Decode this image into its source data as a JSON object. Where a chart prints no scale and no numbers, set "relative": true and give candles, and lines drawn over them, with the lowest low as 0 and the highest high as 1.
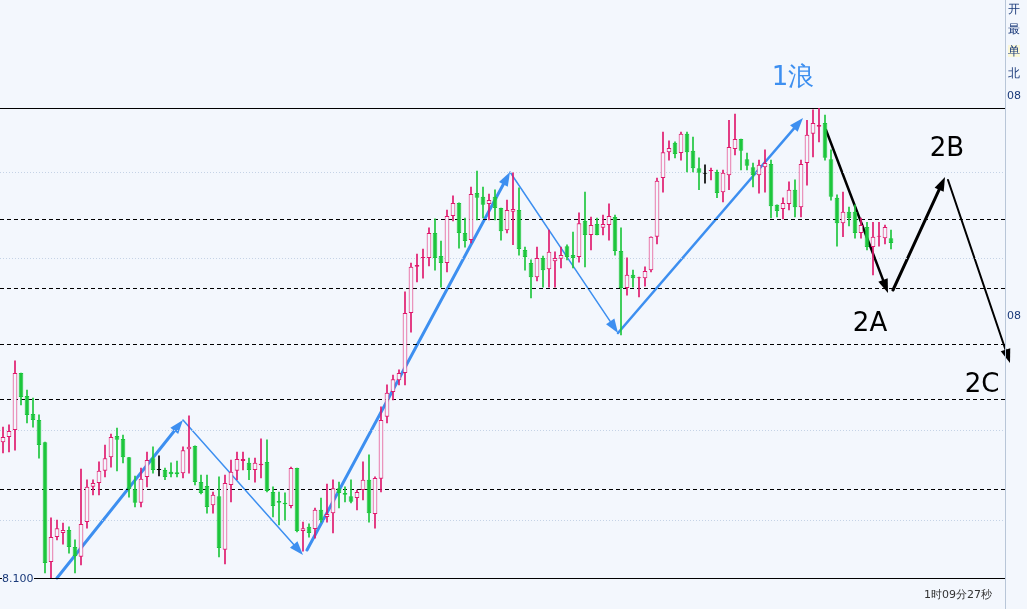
{
  "chart_data": {
    "type": "candlestick",
    "relative": true,
    "categories": [
      null,
      null,
      null,
      null,
      null,
      null,
      null,
      null,
      null,
      null,
      null,
      null,
      null,
      null,
      null,
      null,
      null,
      null,
      null,
      null,
      null,
      null,
      null,
      null,
      null,
      null,
      null,
      null,
      null,
      null,
      null,
      null,
      null,
      null,
      null,
      null,
      null,
      null,
      null,
      null,
      null,
      null,
      null,
      null,
      null,
      null,
      null,
      null,
      null,
      null,
      null,
      null,
      null,
      null,
      null,
      null,
      null,
      null,
      null,
      null,
      null,
      null,
      null,
      null,
      null,
      null,
      null,
      null,
      null,
      null,
      null,
      null,
      null,
      null,
      null,
      null,
      null,
      null,
      null,
      null,
      null,
      null,
      null,
      null,
      null,
      null,
      null,
      null,
      null,
      null,
      null,
      null,
      null,
      null,
      null,
      null,
      null,
      null,
      null,
      null,
      null,
      null,
      null,
      null,
      null,
      null,
      null,
      null,
      null,
      null,
      null,
      null,
      null,
      null,
      null,
      null,
      null,
      null,
      null,
      null,
      null,
      null,
      null,
      null,
      null,
      null,
      null,
      null,
      null,
      null,
      null,
      null,
      null,
      null,
      null,
      null,
      null,
      null,
      null,
      null,
      null,
      null,
      null,
      null,
      null,
      null,
      null,
      null,
      null
    ],
    "ohlc": [
      [
        0.289,
        0.321,
        0.266,
        0.3
      ],
      [
        0.3,
        0.326,
        0.268,
        0.313
      ],
      [
        0.315,
        0.462,
        0.272,
        0.436
      ],
      [
        0.436,
        0.436,
        0.368,
        0.385
      ],
      [
        0.387,
        0.4,
        0.33,
        0.347
      ],
      [
        0.349,
        0.383,
        0.321,
        0.336
      ],
      [
        0.336,
        0.347,
        0.255,
        0.283
      ],
      [
        0.289,
        0.289,
        0.011,
        0.032
      ],
      [
        0.034,
        0.128,
        0,
        0.087
      ],
      [
        0.087,
        0.123,
        0.081,
        0.106
      ],
      [
        0.096,
        0.117,
        0.072,
        0.102
      ],
      [
        0.102,
        0.109,
        0.053,
        0.066
      ],
      [
        0.066,
        0.081,
        0.011,
        0.047
      ],
      [
        0.045,
        0.232,
        0.028,
        0.115
      ],
      [
        0.119,
        0.209,
        0.106,
        0.194
      ],
      [
        0.194,
        0.209,
        0.177,
        0.202
      ],
      [
        0.202,
        0.247,
        0.177,
        0.228
      ],
      [
        0.228,
        0.283,
        0.215,
        0.255
      ],
      [
        0.257,
        0.306,
        0.236,
        0.3
      ],
      [
        0.302,
        0.319,
        0.228,
        0.294
      ],
      [
        0.296,
        0.304,
        0.245,
        0.257
      ],
      [
        0.257,
        0.257,
        0.172,
        0.189
      ],
      [
        0.189,
        0.217,
        0.151,
        0.16
      ],
      [
        0.16,
        0.234,
        0.151,
        0.211
      ],
      [
        0.215,
        0.268,
        0.194,
        0.251
      ],
      [
        0.255,
        0.279,
        0.223,
        0.23
      ],
      [
        0.23,
        0.26,
        0.217,
        0.23
      ],
      [
        0.23,
        0.234,
        0.209,
        0.215
      ],
      [
        0.226,
        0.245,
        0.215,
        0.221
      ],
      [
        0.225,
        0.249,
        0.215,
        0.221
      ],
      [
        0.223,
        0.279,
        0.213,
        0.272
      ],
      [
        0.274,
        0.345,
        0.223,
        0.279
      ],
      [
        0.281,
        0.281,
        0.198,
        0.204
      ],
      [
        0.204,
        0.219,
        0.179,
        0.181
      ],
      [
        0.196,
        0.219,
        0.138,
        0.151
      ],
      [
        0.155,
        0.183,
        0.138,
        0.177
      ],
      [
        0.174,
        0.215,
        0.045,
        0.064
      ],
      [
        0.06,
        0.219,
        0.03,
        0.202
      ],
      [
        0.198,
        0.251,
        0.162,
        0.226
      ],
      [
        0.228,
        0.268,
        0.209,
        0.253
      ],
      [
        0.249,
        0.268,
        0.23,
        0.253
      ],
      [
        0.245,
        0.255,
        0.209,
        0.23
      ],
      [
        0.23,
        0.255,
        0.204,
        0.245
      ],
      [
        0.24,
        0.296,
        0.213,
        0.243
      ],
      [
        0.247,
        0.294,
        0.183,
        0.185
      ],
      [
        0.183,
        0.194,
        0.13,
        0.153
      ],
      [
        0.164,
        0.183,
        0.113,
        0.16
      ],
      [
        0.16,
        0.181,
        0.123,
        0.157
      ],
      [
        0.153,
        0.236,
        0.149,
        0.234
      ],
      [
        0.234,
        0.234,
        0.098,
        0.1
      ],
      [
        0.1,
        0.119,
        0.057,
        0.106
      ],
      [
        0.109,
        0.115,
        0.087,
        0.096
      ],
      [
        0.104,
        0.149,
        0.085,
        0.145
      ],
      [
        0.145,
        0.17,
        0.119,
        0.123
      ],
      [
        0.13,
        0.2,
        0.119,
        0.136
      ],
      [
        0.138,
        0.209,
        0.096,
        0.191
      ],
      [
        0.191,
        0.204,
        0.149,
        0.181
      ],
      [
        0.181,
        0.194,
        0.162,
        0.177
      ],
      [
        0.174,
        0.209,
        0.16,
        0.162
      ],
      [
        0.17,
        0.187,
        0.145,
        0.183
      ],
      [
        0.187,
        0.247,
        0.166,
        0.209
      ],
      [
        0.209,
        0.262,
        0.119,
        0.138
      ],
      [
        0.136,
        0.215,
        0.106,
        0.213
      ],
      [
        0.211,
        0.364,
        0.183,
        0.336
      ],
      [
        0.343,
        0.411,
        0.33,
        0.394
      ],
      [
        0.396,
        0.432,
        0.379,
        0.423
      ],
      [
        0.421,
        0.443,
        0.411,
        0.436
      ],
      [
        0.436,
        0.609,
        0.411,
        0.564
      ],
      [
        0.564,
        0.67,
        0.523,
        0.662
      ],
      [
        0.662,
        0.689,
        0.63,
        0.666
      ],
      [
        0.681,
        0.7,
        0.638,
        0.683
      ],
      [
        0.681,
        0.745,
        0.664,
        0.734
      ],
      [
        0.734,
        0.764,
        0.655,
        0.681
      ],
      [
        0.685,
        0.717,
        0.619,
        0.67
      ],
      [
        0.67,
        0.783,
        0.651,
        0.77
      ],
      [
        0.77,
        0.813,
        0.76,
        0.798
      ],
      [
        0.798,
        0.798,
        0.702,
        0.734
      ],
      [
        0.734,
        0.766,
        0.704,
        0.717
      ],
      [
        0.719,
        0.832,
        0.713,
        0.817
      ],
      [
        0.819,
        0.866,
        0.762,
        0.809
      ],
      [
        0.811,
        0.832,
        0.766,
        0.794
      ],
      [
        0.796,
        0.817,
        0.762,
        0.804
      ],
      [
        0.811,
        0.826,
        0.762,
        0.787
      ],
      [
        0.787,
        0.787,
        0.719,
        0.738
      ],
      [
        0.74,
        0.804,
        0.734,
        0.783
      ],
      [
        0.779,
        0.862,
        0.709,
        0.785
      ],
      [
        0.783,
        0.83,
        0.687,
        0.7
      ],
      [
        0.698,
        0.704,
        0.655,
        0.683
      ],
      [
        0.67,
        0.677,
        0.596,
        0.64
      ],
      [
        0.64,
        0.704,
        0.632,
        0.681
      ],
      [
        0.681,
        0.685,
        0.619,
        0.655
      ],
      [
        0.657,
        0.74,
        0.619,
        0.694
      ],
      [
        0.674,
        0.694,
        0.619,
        0.681
      ],
      [
        0.679,
        0.704,
        0.66,
        0.687
      ],
      [
        0.706,
        0.709,
        0.677,
        0.683
      ],
      [
        0.687,
        0.736,
        0.66,
        0.681
      ],
      [
        0.683,
        0.777,
        0.672,
        0.755
      ],
      [
        0.76,
        0.821,
        0.662,
        0.73
      ],
      [
        0.73,
        0.768,
        0.698,
        0.751
      ],
      [
        0.753,
        0.766,
        0.73,
        0.73
      ],
      [
        0.745,
        0.772,
        0.73,
        0.753
      ],
      [
        0.751,
        0.796,
        0.719,
        0.77
      ],
      [
        0.768,
        0.772,
        0.687,
        0.696
      ],
      [
        0.696,
        0.745,
        0.517,
        0.617
      ],
      [
        0.617,
        0.681,
        0.602,
        0.645
      ],
      [
        0.645,
        0.655,
        0.619,
        0.638
      ],
      [
        0.638,
        0.64,
        0.598,
        0.64
      ],
      [
        0.638,
        0.662,
        0.621,
        0.653
      ],
      [
        0.655,
        0.726,
        0.651,
        0.726
      ],
      [
        0.726,
        0.851,
        0.711,
        0.845
      ],
      [
        0.851,
        0.949,
        0.821,
        0.906
      ],
      [
        0.906,
        0.93,
        0.889,
        0.915
      ],
      [
        0.926,
        0.928,
        0.894,
        0.902
      ],
      [
        0.904,
        0.949,
        0.889,
        0.945
      ],
      [
        0.945,
        0.949,
        0.864,
        0.906
      ],
      [
        0.909,
        0.938,
        0.864,
        0.872
      ],
      [
        0.872,
        0.894,
        0.826,
        0.862
      ],
      [
        0.86,
        0.879,
        0.84,
        0.86
      ],
      [
        0.866,
        0.872,
        0.847,
        0.868
      ],
      [
        0.864,
        0.868,
        0.809,
        0.819
      ],
      [
        0.821,
        0.868,
        0.8,
        0.862
      ],
      [
        0.857,
        0.974,
        0.826,
        0.917
      ],
      [
        0.913,
        0.987,
        0.9,
        0.934
      ],
      [
        0.934,
        0.934,
        0.868,
        0.909
      ],
      [
        0.891,
        0.904,
        0.868,
        0.877
      ],
      [
        0.874,
        0.883,
        0.832,
        0.857
      ],
      [
        0.857,
        0.889,
        0.819,
        0.879
      ],
      [
        0.874,
        0.911,
        0.821,
        0.883
      ],
      [
        0.881,
        0.889,
        0.766,
        0.791
      ],
      [
        0.794,
        0.794,
        0.768,
        0.781
      ],
      [
        0.785,
        0.809,
        0.764,
        0.798
      ],
      [
        0.796,
        0.843,
        0.783,
        0.826
      ],
      [
        0.826,
        0.847,
        0.768,
        0.789
      ],
      [
        0.789,
        0.889,
        0.768,
        0.881
      ],
      [
        0.883,
        0.974,
        0.836,
        0.943
      ],
      [
        0.945,
        0.996,
        0.896,
        0.968
      ],
      [
        0.96,
        1,
        0.928,
        0.964
      ],
      [
        0.968,
        0.985,
        0.889,
        0.894
      ],
      [
        0.891,
        0.911,
        0.804,
        0.811
      ],
      [
        0.809,
        0.815,
        0.706,
        0.755
      ],
      [
        0.755,
        0.821,
        0.726,
        0.779
      ],
      [
        0.779,
        0.789,
        0.749,
        0.766
      ],
      [
        0.779,
        0.794,
        0.723,
        0.734
      ],
      [
        0.734,
        0.766,
        0.723,
        0.751
      ],
      [
        0.747,
        0.757,
        0.698,
        0.704
      ],
      [
        0.704,
        0.757,
        0.645,
        0.726
      ],
      [
        0.726,
        0.757,
        0.706,
        0.728
      ],
      [
        0.723,
        0.751,
        0.711,
        0.747
      ],
      [
        0.723,
        0.74,
        0.7,
        0.713
      ]
    ],
    "colors": [
      "#e0186c",
      "#e0186c",
      "#e0186c",
      "#1cc63c",
      "#1cc63c",
      "#1cc63c",
      "#1cc63c",
      "#1cc63c",
      "#e0186c",
      "#e0186c",
      "#e0186c",
      "#1cc63c",
      "#1cc63c",
      "#e0186c",
      "#e0186c",
      "#e0186c",
      "#e0186c",
      "#e0186c",
      "#e0186c",
      "#1cc63c",
      "#1cc63c",
      "#1cc63c",
      "#1cc63c",
      "#e0186c",
      "#e0186c",
      "#1cc63c",
      "#000000",
      "#1cc63c",
      "#1cc63c",
      "#1cc63c",
      "#e0186c",
      "#e0186c",
      "#1cc63c",
      "#1cc63c",
      "#1cc63c",
      "#e0186c",
      "#1cc63c",
      "#e0186c",
      "#e0186c",
      "#e0186c",
      "#e0186c",
      "#1cc63c",
      "#e0186c",
      "#e0186c",
      "#1cc63c",
      "#1cc63c",
      "#1cc63c",
      "#1cc63c",
      "#e0186c",
      "#1cc63c",
      "#e0186c",
      "#1cc63c",
      "#e0186c",
      "#1cc63c",
      "#e0186c",
      "#e0186c",
      "#1cc63c",
      "#1cc63c",
      "#1cc63c",
      "#e0186c",
      "#e0186c",
      "#1cc63c",
      "#e0186c",
      "#e0186c",
      "#e0186c",
      "#e0186c",
      "#e0186c",
      "#e0186c",
      "#e0186c",
      "#e0186c",
      "#e0186c",
      "#e0186c",
      "#1cc63c",
      "#1cc63c",
      "#e0186c",
      "#e0186c",
      "#1cc63c",
      "#1cc63c",
      "#e0186c",
      "#1cc63c",
      "#1cc63c",
      "#e0186c",
      "#1cc63c",
      "#1cc63c",
      "#e0186c",
      "#e0186c",
      "#1cc63c",
      "#1cc63c",
      "#1cc63c",
      "#e0186c",
      "#1cc63c",
      "#e0186c",
      "#e0186c",
      "#e0186c",
      "#1cc63c",
      "#1cc63c",
      "#e0186c",
      "#1cc63c",
      "#e0186c",
      "#1cc63c",
      "#e0186c",
      "#e0186c",
      "#1cc63c",
      "#1cc63c",
      "#e0186c",
      "#1cc63c",
      "#e0186c",
      "#e0186c",
      "#e0186c",
      "#e0186c",
      "#e0186c",
      "#e0186c",
      "#1cc63c",
      "#e0186c",
      "#1cc63c",
      "#1cc63c",
      "#1cc63c",
      "#000000",
      "#e0186c",
      "#1cc63c",
      "#e0186c",
      "#e0186c",
      "#e0186c",
      "#1cc63c",
      "#1cc63c",
      "#1cc63c",
      "#e0186c",
      "#e0186c",
      "#1cc63c",
      "#1cc63c",
      "#e0186c",
      "#e0186c",
      "#1cc63c",
      "#e0186c",
      "#e0186c",
      "#e0186c",
      "#e0186c",
      "#1cc63c",
      "#1cc63c",
      "#1cc63c",
      "#e0186c",
      "#1cc63c",
      "#1cc63c",
      "#e0186c",
      "#1cc63c",
      "#e0186c",
      "#e0186c",
      "#e0186c",
      "#1cc63c"
    ],
    "ref_lines": [
      {
        "axis": "y",
        "value": 1,
        "color": "#000000",
        "line_style": "solid"
      },
      {
        "axis": "y",
        "value": 0,
        "color": "#000000",
        "line_style": "solid"
      },
      {
        "axis": "y",
        "value": 0.764,
        "color": "#000000",
        "line_style": "dashed"
      },
      {
        "axis": "y",
        "value": 0.617,
        "color": "#000000",
        "line_style": "dashed"
      },
      {
        "axis": "y",
        "value": 0.498,
        "color": "#000000",
        "line_style": "dashed"
      },
      {
        "axis": "y",
        "value": 0.381,
        "color": "#000000",
        "line_style": "dashed"
      },
      {
        "axis": "y",
        "value": 0.189,
        "color": "#000000",
        "line_style": "dashed"
      },
      {
        "axis": "y",
        "value": 0.864,
        "color": "#c5d3e6",
        "line_style": "dotted"
      },
      {
        "axis": "y",
        "value": 0.681,
        "color": "#c5d3e6",
        "line_style": "dotted"
      },
      {
        "axis": "y",
        "value": 0.315,
        "color": "#c5d3e6",
        "line_style": "dotted"
      },
      {
        "axis": "y",
        "value": 0.123,
        "color": "#c5d3e6",
        "line_style": "dotted"
      }
    ],
    "annotations": [
      "1浪",
      "2A",
      "2B",
      "2C",
      "8.100",
      "1时09分27秒",
      "开",
      "最",
      "单",
      "北",
      "08",
      "08"
    ]
  }
}
